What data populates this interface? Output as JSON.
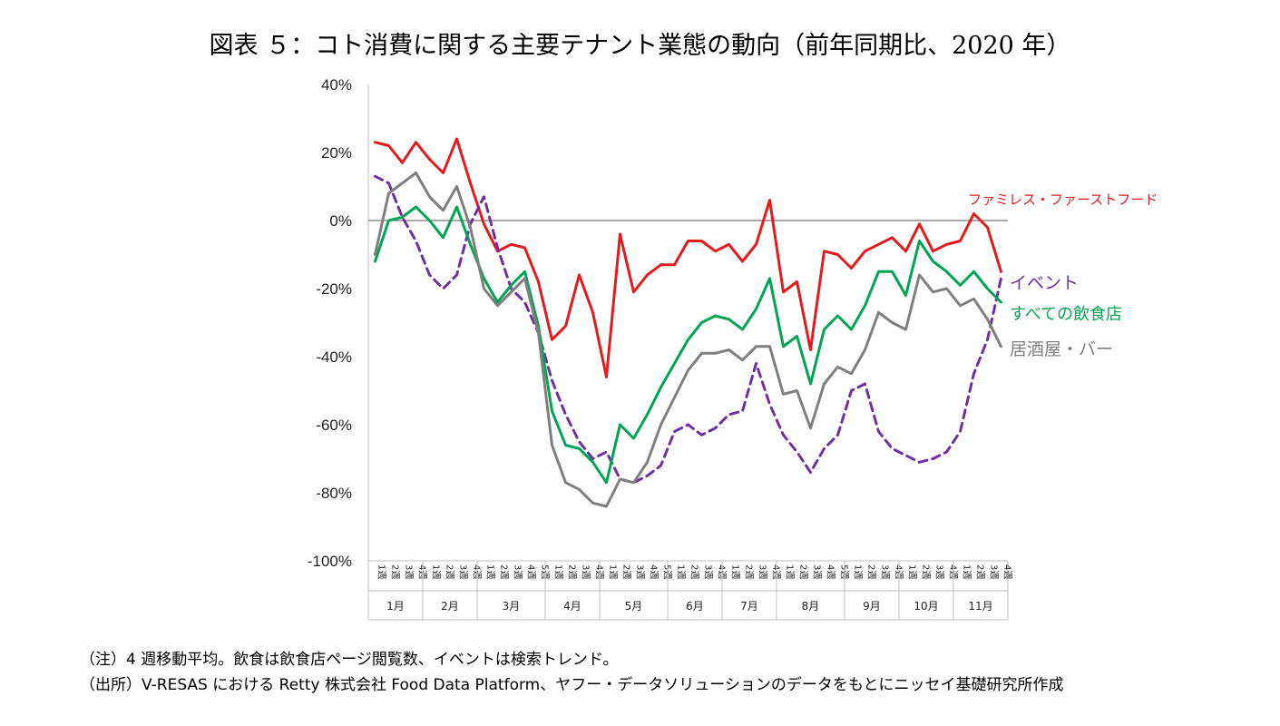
{
  "chart_data": {
    "type": "line",
    "title": "図表 ５：コト消費に関する主要テナント業態の動向（前年同期比、2020 年）",
    "ylim": [
      -100,
      40
    ],
    "yticks": [
      40,
      20,
      0,
      -20,
      -40,
      -60,
      -80,
      -100
    ],
    "ytick_labels": [
      "40%",
      "20%",
      "0%",
      "-20%",
      "-40%",
      "-60%",
      "-80%",
      "-100%"
    ],
    "week_labels": [
      "1週",
      "2週",
      "3週",
      "4週",
      "1週",
      "2週",
      "3週",
      "4週",
      "1週",
      "2週",
      "3週",
      "4週",
      "5週",
      "1週",
      "2週",
      "3週",
      "4週",
      "1週",
      "2週",
      "3週",
      "4週",
      "5週",
      "1週",
      "2週",
      "3週",
      "4週",
      "1週",
      "2週",
      "3週",
      "4週",
      "1週",
      "2週",
      "3週",
      "4週",
      "5週",
      "1週",
      "2週",
      "3週",
      "4週",
      "1週",
      "2週",
      "3週",
      "4週",
      "1週",
      "2週",
      "3週",
      "4週"
    ],
    "months": [
      {
        "label": "1月",
        "weeks": 4
      },
      {
        "label": "2月",
        "weeks": 4
      },
      {
        "label": "3月",
        "weeks": 5
      },
      {
        "label": "4月",
        "weeks": 4
      },
      {
        "label": "5月",
        "weeks": 5
      },
      {
        "label": "6月",
        "weeks": 4
      },
      {
        "label": "7月",
        "weeks": 4
      },
      {
        "label": "8月",
        "weeks": 5
      },
      {
        "label": "9月",
        "weeks": 4
      },
      {
        "label": "10月",
        "weeks": 4
      },
      {
        "label": "11月",
        "weeks": 4
      }
    ],
    "series": [
      {
        "name": "ファミレス・ファーストフード",
        "color": "#e41a1c",
        "dash": false,
        "values": [
          23,
          22,
          17,
          23,
          18,
          14,
          24,
          11,
          -1,
          -9,
          -7,
          -8,
          -18,
          -35,
          -31,
          -16,
          -27,
          -46,
          -4,
          -21,
          -16,
          -13,
          -13,
          -6,
          -6,
          -9,
          -7,
          -12,
          -7,
          6,
          -21,
          -18,
          -38,
          -9,
          -10,
          -14,
          -9,
          -7,
          -5,
          -9,
          -1,
          -9,
          -7,
          -6,
          2,
          -2,
          -15
        ]
      },
      {
        "name": "イベント",
        "color": "#7030a0",
        "dash": true,
        "values": [
          13,
          11,
          1,
          -6,
          -16,
          -20,
          -16,
          -1,
          7,
          -8,
          -20,
          -24,
          -33,
          -47,
          -57,
          -65,
          -70,
          -68,
          -76,
          -77,
          -75,
          -72,
          -62,
          -60,
          -63,
          -61,
          -57,
          -56,
          -42,
          -54,
          -63,
          -68,
          -74,
          -67,
          -63,
          -50,
          -48,
          -62,
          -67,
          -69,
          -71,
          -70,
          -68,
          -62,
          -45,
          -35,
          -17
        ]
      },
      {
        "name": "すべての飲食店",
        "color": "#00a651",
        "dash": false,
        "values": [
          -12,
          0,
          1,
          4,
          0,
          -5,
          4,
          -7,
          -17,
          -24,
          -19,
          -15,
          -31,
          -56,
          -66,
          -67,
          -71,
          -77,
          -60,
          -64,
          -57,
          -49,
          -42,
          -35,
          -30,
          -28,
          -29,
          -32,
          -26,
          -17,
          -37,
          -34,
          -48,
          -32,
          -28,
          -32,
          -25,
          -15,
          -15,
          -22,
          -6,
          -12,
          -15,
          -19,
          -15,
          -20,
          -24
        ]
      },
      {
        "name": "居酒屋・バー",
        "color": "#7f7f7f",
        "dash": false,
        "values": [
          -10,
          8,
          11,
          14,
          7,
          3,
          10,
          -2,
          -20,
          -25,
          -21,
          -17,
          -33,
          -66,
          -77,
          -79,
          -83,
          -84,
          -76,
          -77,
          -71,
          -60,
          -52,
          -44,
          -39,
          -39,
          -38,
          -41,
          -37,
          -37,
          -51,
          -50,
          -61,
          -48,
          -43,
          -45,
          -38,
          -27,
          -30,
          -32,
          -16,
          -21,
          -20,
          -25,
          -23,
          -29,
          -37
        ]
      }
    ]
  },
  "notes": {
    "line1": "（注）4 週移動平均。飲食は飲食店ページ閲覧数、イベントは検索トレンド。",
    "line2": "（出所）V-RESAS における Retty 株式会社 Food Data Platform、ヤフー・データソリューションのデータをもとにニッセイ基礎研究所作成"
  }
}
